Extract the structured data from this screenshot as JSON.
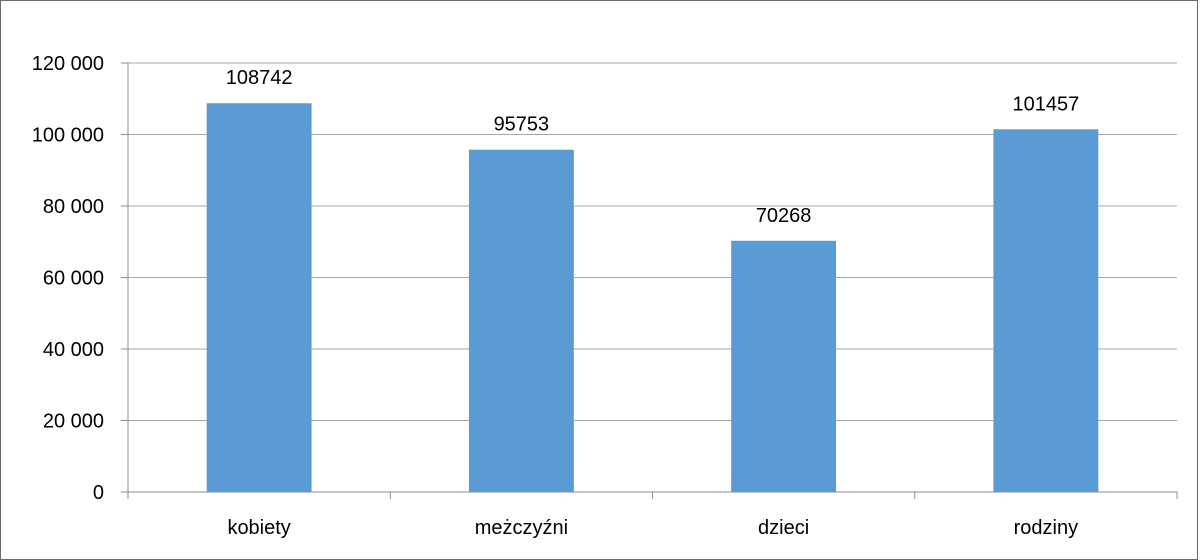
{
  "chart_data": {
    "type": "bar",
    "categories": [
      "kobiety",
      "meżczyźni",
      "dzieci",
      "rodziny"
    ],
    "values": [
      108742,
      95753,
      70268,
      101457
    ],
    "data_labels": [
      "108742",
      "95753",
      "70268",
      "101457"
    ],
    "yticks": [
      0,
      20000,
      40000,
      60000,
      80000,
      100000,
      120000
    ],
    "ytick_labels": [
      "0",
      "20 000",
      "40 000",
      "60 000",
      "80 000",
      "100 000",
      "120 000"
    ],
    "ylim": [
      0,
      120000
    ],
    "grid": true,
    "bar_color": "#5b9bd5",
    "grid_color": "#a6a6a6",
    "axis_color": "#8c8c8c"
  }
}
